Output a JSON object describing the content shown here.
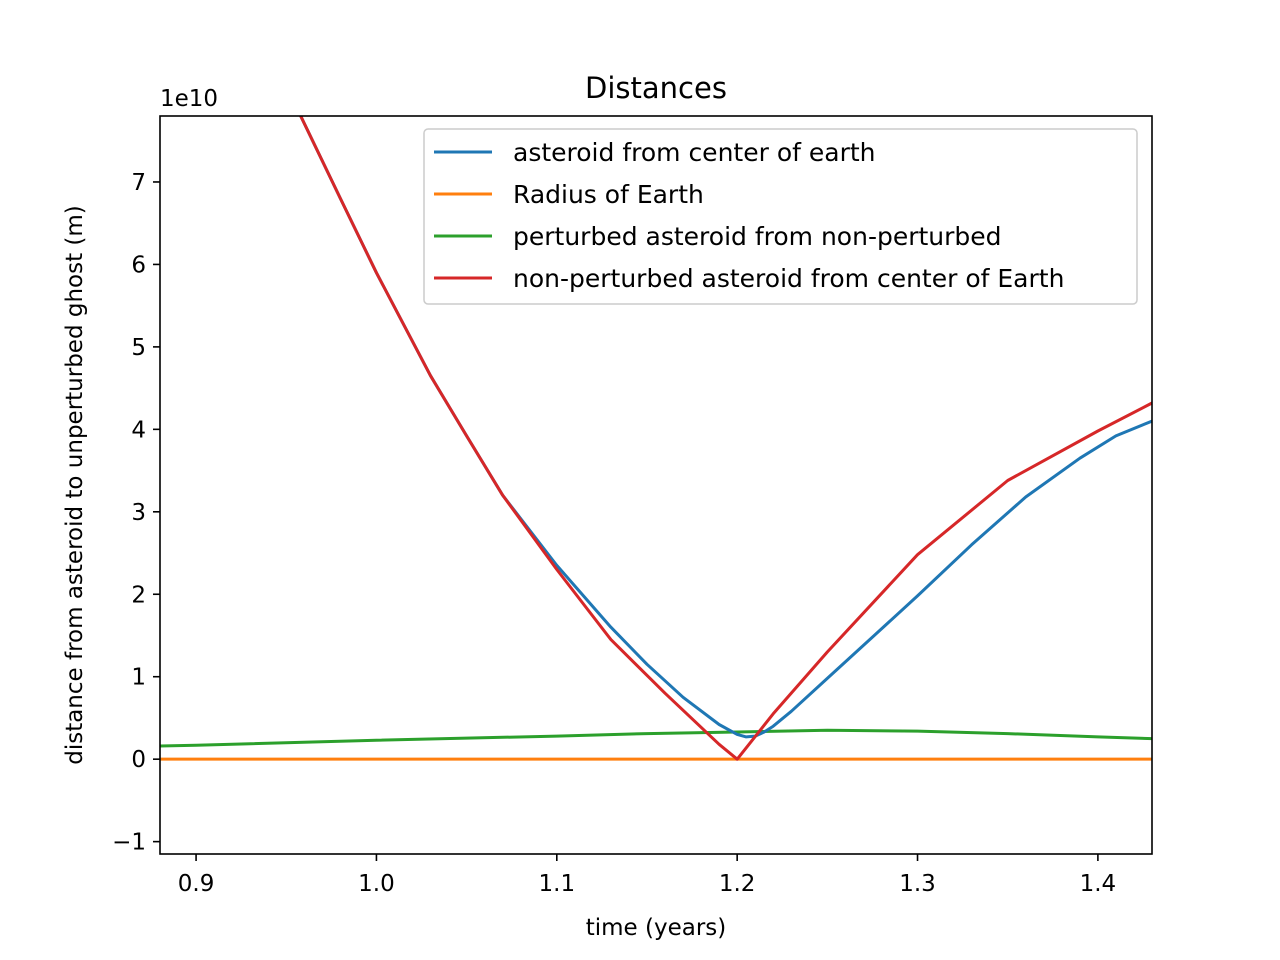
{
  "chart_data": {
    "type": "line",
    "title": "Distances",
    "xlabel": "time (years)",
    "ylabel": "distance from asteroid to unperturbed ghost (m)",
    "y_offset_label": "1e10",
    "y_scale_factor": 10000000000,
    "xlim": [
      0.88,
      1.43
    ],
    "ylim": [
      -1.15,
      7.8
    ],
    "x_ticks": [
      0.9,
      1.0,
      1.1,
      1.2,
      1.3,
      1.4
    ],
    "x_tick_labels": [
      "0.9",
      "1.0",
      "1.1",
      "1.2",
      "1.3",
      "1.4"
    ],
    "y_ticks": [
      -1,
      0,
      1,
      2,
      3,
      4,
      5,
      6,
      7
    ],
    "y_tick_labels": [
      "−1",
      "0",
      "1",
      "2",
      "3",
      "4",
      "5",
      "6",
      "7"
    ],
    "grid": false,
    "legend_position": "top-right",
    "series": [
      {
        "name": "asteroid from center of earth",
        "color": "#1f77b4",
        "x": [
          0.958,
          0.98,
          1.0,
          1.03,
          1.05,
          1.07,
          1.1,
          1.13,
          1.15,
          1.17,
          1.19,
          1.2,
          1.205,
          1.21,
          1.215,
          1.22,
          1.23,
          1.25,
          1.27,
          1.3,
          1.33,
          1.36,
          1.39,
          1.41,
          1.43
        ],
        "y": [
          7.8,
          6.8,
          5.9,
          4.65,
          3.92,
          3.2,
          2.35,
          1.6,
          1.15,
          0.75,
          0.42,
          0.3,
          0.27,
          0.28,
          0.33,
          0.4,
          0.58,
          0.98,
          1.38,
          1.98,
          2.6,
          3.18,
          3.65,
          3.92,
          4.1
        ]
      },
      {
        "name": "Radius of Earth",
        "color": "#ff7f0e",
        "x": [
          0.88,
          1.43
        ],
        "y": [
          0.0006,
          0.0006
        ]
      },
      {
        "name": "perturbed asteroid from non-perturbed",
        "color": "#2ca02c",
        "x": [
          0.88,
          0.9,
          1.0,
          1.1,
          1.15,
          1.2,
          1.25,
          1.3,
          1.35,
          1.4,
          1.43
        ],
        "y": [
          0.16,
          0.17,
          0.23,
          0.28,
          0.31,
          0.33,
          0.35,
          0.34,
          0.31,
          0.27,
          0.25
        ]
      },
      {
        "name": "non-perturbed asteroid from center of Earth",
        "color": "#d62728",
        "x": [
          0.958,
          0.98,
          1.0,
          1.03,
          1.05,
          1.07,
          1.1,
          1.13,
          1.16,
          1.19,
          1.2,
          1.22,
          1.25,
          1.3,
          1.35,
          1.4,
          1.43
        ],
        "y": [
          7.8,
          6.8,
          5.9,
          4.65,
          3.92,
          3.2,
          2.3,
          1.45,
          0.8,
          0.18,
          0.0,
          0.55,
          1.3,
          2.48,
          3.38,
          3.98,
          4.32
        ]
      }
    ]
  }
}
